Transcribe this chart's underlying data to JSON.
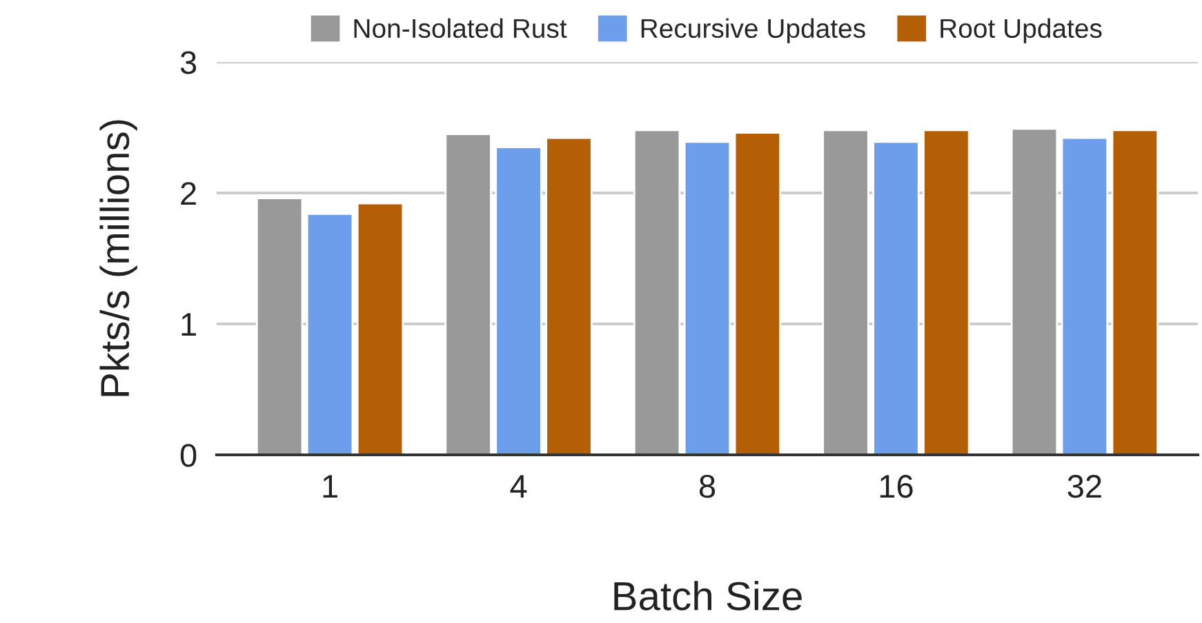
{
  "chart_data": {
    "type": "bar",
    "xlabel": "Batch Size",
    "ylabel": "Pkts/s (millions)",
    "categories": [
      "1",
      "4",
      "8",
      "16",
      "32"
    ],
    "series": [
      {
        "name": "Non-Isolated Rust",
        "color": "#999999",
        "values": [
          1.96,
          2.45,
          2.48,
          2.48,
          2.49
        ]
      },
      {
        "name": "Recursive Updates",
        "color": "#6d9eeb",
        "values": [
          1.84,
          2.35,
          2.39,
          2.39,
          2.42
        ]
      },
      {
        "name": "Root Updates",
        "color": "#b45f06",
        "values": [
          1.92,
          2.42,
          2.46,
          2.48,
          2.48
        ]
      }
    ],
    "ylim": [
      0,
      3
    ],
    "yticks": [
      0,
      1,
      2,
      3
    ],
    "grid": "y",
    "legend": "top"
  }
}
